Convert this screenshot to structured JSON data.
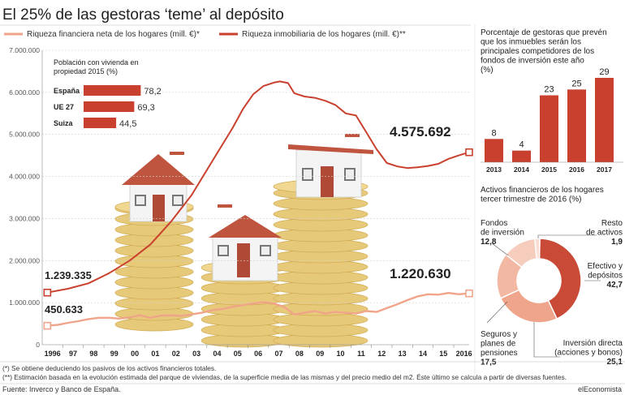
{
  "title": "El 25% de las gestoras ‘teme’ al depósito",
  "legend": {
    "financiera": "Riqueza financiera neta de los hogares (mill. €)*",
    "inmobiliaria": "Riqueza inmobiliaria de los hogares (mill. €)**"
  },
  "labels": {
    "inmob_start": "1.239.335",
    "inmob_end": "4.575.692",
    "fin_start": "450.633",
    "fin_end": "1.220.630"
  },
  "inset": {
    "title_line1": "Población con vivienda en",
    "title_line2": "propiedad 2015 (%)",
    "rows": [
      {
        "country": "España",
        "value": 78.2,
        "label": "78,2"
      },
      {
        "country": "UE 27",
        "value": 69.3,
        "label": "69,3"
      },
      {
        "country": "Suiza",
        "value": 44.5,
        "label": "44,5"
      }
    ]
  },
  "side_bar": {
    "title_lines": [
      "Porcentaje de gestoras que prevén",
      "que los inmuebles serán los",
      "principales competidores de los",
      "fondos de inversión este año",
      "(%)"
    ],
    "rows": [
      {
        "year": "2013",
        "value": 8
      },
      {
        "year": "2014",
        "value": 4
      },
      {
        "year": "2015",
        "value": 23
      },
      {
        "year": "2016",
        "value": 25
      },
      {
        "year": "2017",
        "value": 29
      }
    ]
  },
  "donut": {
    "title_lines": [
      "Activos financieros de los hogares",
      "tercer trimestre de 2016 (%)"
    ],
    "slices": [
      {
        "name_lines": [
          "Efectivo y",
          "depósitos"
        ],
        "label": "42,7",
        "value": 42.7,
        "color": "#c94a36"
      },
      {
        "name_lines": [
          "Inversión directa",
          "(acciones y bonos)"
        ],
        "label": "25,1",
        "value": 25.1,
        "color": "#efa58c"
      },
      {
        "name_lines": [
          "Seguros y",
          "planes de",
          "pensiones"
        ],
        "label": "17,5",
        "value": 17.5,
        "color": "#f2b8a4"
      },
      {
        "name_lines": [
          "Fondos",
          "de inversión"
        ],
        "label": "12,8",
        "value": 12.8,
        "color": "#f6cdbd"
      },
      {
        "name_lines": [
          "Resto",
          "de activos"
        ],
        "label": "1,9",
        "value": 1.9,
        "color": "#f9ddd2"
      }
    ]
  },
  "chart_data": {
    "type": "line",
    "y_ticks": [
      "0",
      "1.000.000",
      "2.000.000",
      "3.000.000",
      "4.000.000",
      "5.000.000",
      "6.000.000",
      "7.000.000"
    ],
    "ylim": [
      0,
      7000000
    ],
    "x_ticks": [
      "1996",
      "97",
      "98",
      "99",
      "00",
      "01",
      "02",
      "03",
      "04",
      "05",
      "06",
      "07",
      "08",
      "09",
      "10",
      "11",
      "12",
      "13",
      "14",
      "15",
      "2016"
    ],
    "x_range": [
      1996,
      2016.75
    ],
    "series": [
      {
        "name": "Riqueza inmobiliaria de los hogares (mill. €)**",
        "color": "#c9412e",
        "points": [
          [
            1996,
            1239335
          ],
          [
            1997,
            1330000
          ],
          [
            1998,
            1460000
          ],
          [
            1999,
            1700000
          ],
          [
            2000,
            2000000
          ],
          [
            2001,
            2380000
          ],
          [
            2002,
            2920000
          ],
          [
            2003,
            3550000
          ],
          [
            2004,
            4350000
          ],
          [
            2005,
            5150000
          ],
          [
            2005.5,
            5600000
          ],
          [
            2006,
            5950000
          ],
          [
            2006.5,
            6150000
          ],
          [
            2007,
            6230000
          ],
          [
            2007.3,
            6260000
          ],
          [
            2007.7,
            6220000
          ],
          [
            2008,
            5980000
          ],
          [
            2008.5,
            5900000
          ],
          [
            2009,
            5870000
          ],
          [
            2009.5,
            5800000
          ],
          [
            2010,
            5700000
          ],
          [
            2010.5,
            5500000
          ],
          [
            2011,
            5450000
          ],
          [
            2011.5,
            5050000
          ],
          [
            2012,
            4650000
          ],
          [
            2012.5,
            4320000
          ],
          [
            2013,
            4240000
          ],
          [
            2013.5,
            4200000
          ],
          [
            2014,
            4220000
          ],
          [
            2014.5,
            4250000
          ],
          [
            2015,
            4300000
          ],
          [
            2015.5,
            4420000
          ],
          [
            2016,
            4500000
          ],
          [
            2016.5,
            4575692
          ]
        ]
      },
      {
        "name": "Riqueza financiera neta de los hogares (mill. €)*",
        "color": "#f0a58a",
        "points": [
          [
            1996,
            450633
          ],
          [
            1996.5,
            470000
          ],
          [
            1997,
            520000
          ],
          [
            1997.5,
            560000
          ],
          [
            1998,
            610000
          ],
          [
            1998.5,
            640000
          ],
          [
            1999,
            640000
          ],
          [
            1999.5,
            620000
          ],
          [
            2000,
            650000
          ],
          [
            2000.5,
            700000
          ],
          [
            2001,
            640000
          ],
          [
            2001.5,
            690000
          ],
          [
            2002,
            700000
          ],
          [
            2002.5,
            680000
          ],
          [
            2003,
            720000
          ],
          [
            2003.5,
            760000
          ],
          [
            2004,
            820000
          ],
          [
            2004.5,
            850000
          ],
          [
            2005,
            900000
          ],
          [
            2005.5,
            940000
          ],
          [
            2006,
            980000
          ],
          [
            2006.5,
            1010000
          ],
          [
            2007,
            980000
          ],
          [
            2007.5,
            900000
          ],
          [
            2008,
            720000
          ],
          [
            2008.5,
            760000
          ],
          [
            2009,
            800000
          ],
          [
            2009.5,
            740000
          ],
          [
            2010,
            780000
          ],
          [
            2010.5,
            760000
          ],
          [
            2011,
            740000
          ],
          [
            2011.5,
            800000
          ],
          [
            2012,
            780000
          ],
          [
            2012.5,
            870000
          ],
          [
            2013,
            960000
          ],
          [
            2013.5,
            1060000
          ],
          [
            2014,
            1150000
          ],
          [
            2014.5,
            1200000
          ],
          [
            2015,
            1190000
          ],
          [
            2015.5,
            1230000
          ],
          [
            2016,
            1200000
          ],
          [
            2016.5,
            1220630
          ]
        ]
      }
    ]
  },
  "notes": [
    "(*) Se obtiene  deduciendo los pasivos de los activos financieros totales.",
    "(**) Estimación basada en la evolución estimada del parque de viviendas, de la superficie media de las mismas y del precio medio del m2. Éste último se calcula a partir de diversas fuentes."
  ],
  "footer": {
    "source": "Fuente: Inverco y Banco de España.",
    "brand": "elEconomista"
  }
}
